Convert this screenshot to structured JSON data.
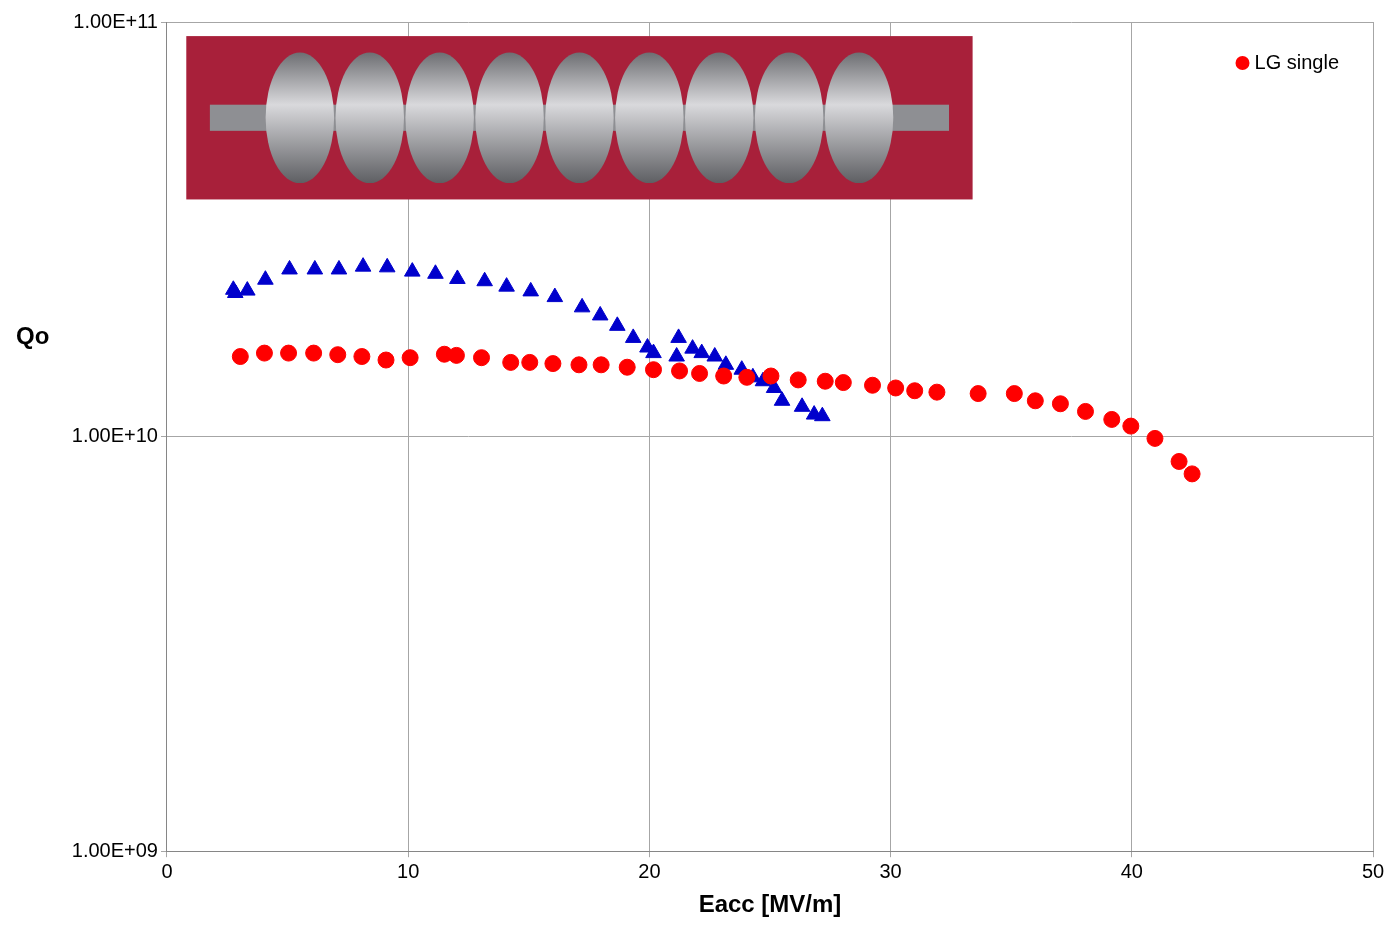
{
  "chart_data": {
    "type": "scatter",
    "x_label": "Eacc [MV/m]",
    "y_label": "Qo",
    "xlim": [
      0,
      50
    ],
    "xticks": [
      0,
      10,
      20,
      30,
      40,
      50
    ],
    "ylim": [
      1000000000,
      100000000000
    ],
    "yticks": [
      {
        "value": 1000000000,
        "label": "1.00E+09"
      },
      {
        "value": 10000000000,
        "label": "1.00E+10"
      },
      {
        "value": 100000000000,
        "label": "1.00E+11"
      }
    ],
    "log": "y",
    "grid": true,
    "legend": "upper right",
    "series": [
      {
        "name": "LG single",
        "color": "#ff0000",
        "marker": "circle",
        "x": [
          3.04,
          4.04,
          5.04,
          6.08,
          7.08,
          8.08,
          9.08,
          10.08,
          11.5,
          12.0,
          13.04,
          14.25,
          15.04,
          16.0,
          17.08,
          18.0,
          19.08,
          20.17,
          21.25,
          22.08,
          23.08,
          24.04,
          25.04,
          26.17,
          27.29,
          28.04,
          29.25,
          30.21,
          31.0,
          31.92,
          33.63,
          35.13,
          36.0,
          37.04,
          38.08,
          39.17,
          39.96,
          40.96,
          41.96,
          42.5
        ],
        "values": [
          15600000000,
          15900000000,
          15900000000,
          15900000000,
          15760000000,
          15600000000,
          15300000000,
          15500000000,
          15800000000,
          15700000000,
          15500000000,
          15100000000,
          15100000000,
          15000000000,
          14900000000,
          14900000000,
          14700000000,
          14500000000,
          14400000000,
          14200000000,
          14000000000,
          13900000000,
          14000000000,
          13700000000,
          13600000000,
          13500000000,
          13300000000,
          13100000000,
          12900000000,
          12800000000,
          12700000000,
          12700000000,
          12200000000,
          12000000000,
          11500000000,
          11000000000,
          10600000000,
          9900000000,
          8710000000,
          8130000000
        ]
      },
      {
        "color": "#0000cc",
        "marker": "triangle",
        "x": [
          2.75,
          2.83,
          3.33,
          4.08,
          5.08,
          6.13,
          7.13,
          8.13,
          9.13,
          10.17,
          11.13,
          12.04,
          13.17,
          14.08,
          15.08,
          16.08,
          17.21,
          17.96,
          18.67,
          19.33,
          19.92,
          20.17,
          21.21,
          21.13,
          21.79,
          22.17,
          22.71,
          23.17,
          23.83,
          24.29,
          24.71,
          25.17,
          25.5,
          26.33,
          26.83,
          27.17
        ],
        "values": [
          22600000000,
          22200000000,
          22500000000,
          23900000000,
          25300000000,
          25300000000,
          25300000000,
          25700000000,
          25600000000,
          25000000000,
          24700000000,
          24000000000,
          23700000000,
          23000000000,
          22400000000,
          21700000000,
          20500000000,
          19600000000,
          18500000000,
          17300000000,
          16400000000,
          15900000000,
          17300000000,
          15600000000,
          16300000000,
          15900000000,
          15600000000,
          14900000000,
          14500000000,
          13900000000,
          13600000000,
          13100000000,
          12200000000,
          11800000000,
          11300000000,
          11200000000
        ]
      }
    ]
  }
}
